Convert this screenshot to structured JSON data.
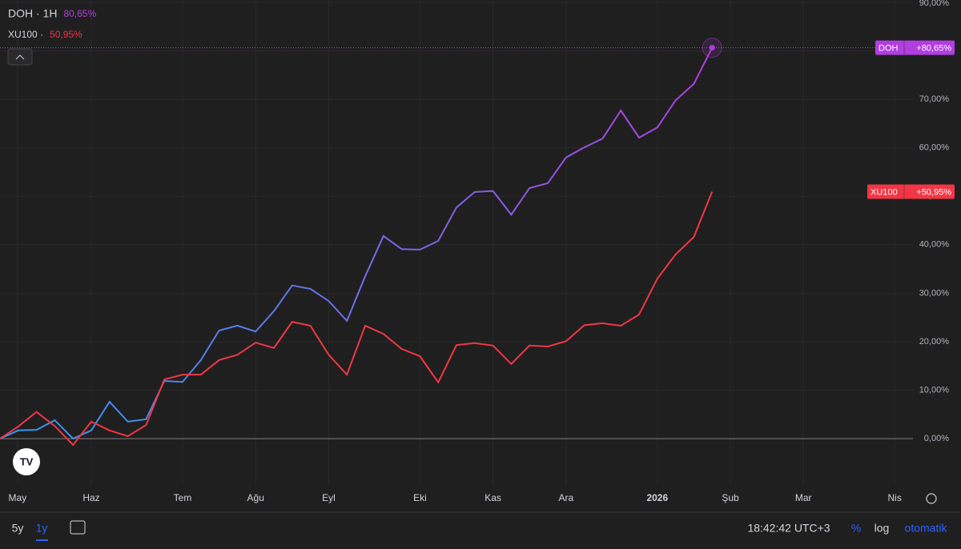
{
  "chart_data": {
    "type": "line",
    "x": [
      0,
      1,
      2,
      3,
      4,
      5,
      6,
      7,
      8,
      9,
      10,
      11,
      12,
      13,
      14,
      15,
      16,
      17,
      18,
      19,
      20,
      21,
      22,
      23,
      24,
      25,
      26,
      27,
      28,
      29,
      30,
      31,
      32,
      33,
      34,
      35,
      36,
      37,
      38,
      39
    ],
    "xlim": [
      0,
      50
    ],
    "xticks": [
      {
        "value": 0.96,
        "label": "May"
      },
      {
        "value": 5,
        "label": "Haz"
      },
      {
        "value": 10,
        "label": "Tem"
      },
      {
        "value": 14,
        "label": "Ağu"
      },
      {
        "value": 18,
        "label": "Eyl"
      },
      {
        "value": 23,
        "label": "Eki"
      },
      {
        "value": 27,
        "label": "Kas"
      },
      {
        "value": 31,
        "label": "Ara"
      },
      {
        "value": 36,
        "label": "2026"
      },
      {
        "value": 40,
        "label": "Şub"
      },
      {
        "value": 44,
        "label": "Mar"
      },
      {
        "value": 49,
        "label": "Nis"
      }
    ],
    "ylim": [
      -9.4,
      90.5
    ],
    "yticks": [
      {
        "value": 0,
        "label": "0,00%"
      },
      {
        "value": 10,
        "label": "10,00%"
      },
      {
        "value": 20,
        "label": "20,00%"
      },
      {
        "value": 30,
        "label": "30,00%"
      },
      {
        "value": 40,
        "label": "40,00%"
      },
      {
        "value": 50,
        "label": "50,00%"
      },
      {
        "value": 60,
        "label": "60,00%"
      },
      {
        "value": 70,
        "label": "70,00%"
      },
      {
        "value": 80,
        "label": "80,00%"
      },
      {
        "value": 90,
        "label": "90,00%"
      }
    ],
    "grid": true,
    "series": [
      {
        "name": "DOH",
        "legend_text": "DOH · 1H",
        "legend_value": "80,65%",
        "last_label": "+80,65%",
        "color": "#b13ee0",
        "gradient_start": "#2e9bf0",
        "values": [
          0,
          1.7,
          1.8,
          3.8,
          0,
          1.7,
          7.6,
          3.5,
          4.0,
          11.9,
          11.7,
          16.2,
          22.3,
          23.3,
          22.1,
          26.3,
          31.6,
          30.9,
          28.4,
          24.3,
          33.5,
          41.8,
          39.1,
          39.0,
          40.8,
          47.7,
          50.9,
          51.1,
          46.2,
          51.7,
          52.7,
          58.0,
          60.1,
          61.9,
          67.7,
          62.1,
          64.2,
          69.8,
          73.2,
          80.65
        ]
      },
      {
        "name": "XU100",
        "legend_text": "XU100 ·",
        "legend_value": "50,95%",
        "last_label": "+50,95%",
        "color": "#f23645",
        "values": [
          0,
          2.5,
          5.5,
          2.6,
          -1.3,
          3.5,
          1.7,
          0.5,
          2.8,
          12.2,
          13.2,
          13.2,
          16.2,
          17.3,
          19.8,
          18.7,
          24.1,
          23.3,
          17.3,
          13.2,
          23.3,
          21.6,
          18.5,
          17.0,
          11.6,
          19.3,
          19.7,
          19.2,
          15.4,
          19.2,
          19.0,
          20.1,
          23.4,
          23.8,
          23.3,
          25.6,
          33.0,
          38.0,
          41.6,
          50.95
        ]
      }
    ]
  },
  "toolbar": {
    "ranges": [
      "5y",
      "1y"
    ],
    "clock": "18:42:42 UTC+3",
    "percent": "%",
    "log": "log",
    "auto": "otomatik"
  }
}
